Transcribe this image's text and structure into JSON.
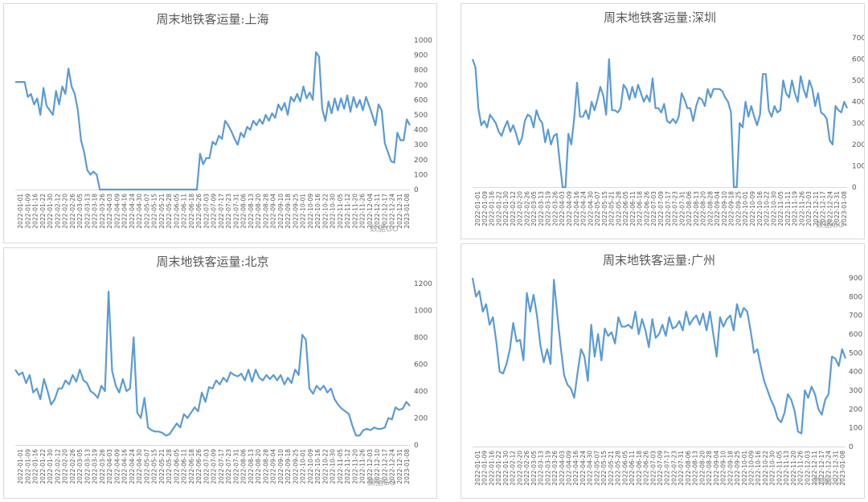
{
  "chart_data": [
    {
      "type": "line",
      "title": "周末地铁客运量:上海",
      "ylim": [
        0,
        1000
      ],
      "yticks": [
        "0",
        "100",
        "200",
        "300",
        "400",
        "500",
        "600",
        "700",
        "800",
        "900",
        "1000"
      ],
      "xtick_labels": [
        "2022-01-01",
        "2022-01-09",
        "2022-01-16",
        "2022-01-22",
        "2022-01-30",
        "2022-02-12",
        "2022-02-20",
        "2022-02-26",
        "2022-03-05",
        "2022-03-13",
        "2022-03-18",
        "2022-03-26",
        "2022-04-03",
        "2022-04-09",
        "2022-04-16",
        "2022-04-24",
        "2022-04-30",
        "2022-05-07",
        "2022-05-15",
        "2022-05-21",
        "2022-05-28",
        "2022-06-05",
        "2022-06-11",
        "2022-06-18",
        "2022-06-26",
        "2022-07-03",
        "2022-07-09",
        "2022-07-17",
        "2022-07-23",
        "2022-07-31",
        "2022-08-06",
        "2022-08-13",
        "2022-08-20",
        "2022-08-28",
        "2022-09-04",
        "2022-09-10",
        "2022-09-18",
        "2022-09-25",
        "2022-10-01",
        "2022-10-09",
        "2022-10-16",
        "2022-10-22",
        "2022-10-30",
        "2022-11-05",
        "2022-11-12",
        "2022-11-20",
        "2022-11-26",
        "2022-12-04",
        "2022-12-11",
        "2022-12-17",
        "2022-12-24",
        "2022-12-31",
        "2023-01-08"
      ],
      "values": [
        720,
        720,
        720,
        720,
        620,
        640,
        570,
        610,
        500,
        680,
        560,
        530,
        500,
        660,
        570,
        690,
        640,
        810,
        690,
        640,
        530,
        330,
        250,
        130,
        100,
        120,
        100,
        0,
        0,
        0,
        0,
        0,
        0,
        0,
        0,
        0,
        0,
        0,
        0,
        0,
        0,
        0,
        0,
        0,
        0,
        0,
        0,
        0,
        0,
        0,
        0,
        0,
        0,
        0,
        0,
        0,
        0,
        0,
        0,
        240,
        170,
        210,
        210,
        320,
        300,
        360,
        340,
        460,
        430,
        390,
        340,
        300,
        380,
        350,
        420,
        400,
        460,
        430,
        470,
        440,
        500,
        460,
        510,
        480,
        570,
        530,
        580,
        500,
        620,
        590,
        640,
        590,
        690,
        610,
        650,
        600,
        920,
        890,
        540,
        460,
        590,
        510,
        610,
        530,
        610,
        540,
        630,
        520,
        620,
        550,
        600,
        530,
        620,
        560,
        500,
        430,
        570,
        530,
        310,
        250,
        190,
        180,
        380,
        330,
        330,
        470,
        430
      ]
    },
    {
      "type": "line",
      "title": "周末地铁客运量:深圳",
      "ylim": [
        0,
        700
      ],
      "yticks": [
        "0",
        "100",
        "200",
        "300",
        "400",
        "500",
        "600",
        "700"
      ],
      "xtick_labels": [
        "2022-01-01",
        "2022-01-09",
        "2022-01-16",
        "2022-01-22",
        "2022-01-30",
        "2022-02-12",
        "2022-02-20",
        "2022-02-26",
        "2022-03-05",
        "2022-03-13",
        "2022-03-19",
        "2022-03-26",
        "2022-04-03",
        "2022-04-09",
        "2022-04-16",
        "2022-04-24",
        "2022-04-30",
        "2022-05-07",
        "2022-05-15",
        "2022-05-21",
        "2022-05-28",
        "2022-06-05",
        "2022-06-11",
        "2022-06-18",
        "2022-06-26",
        "2022-07-03",
        "2022-07-09",
        "2022-07-17",
        "2022-07-23",
        "2022-07-31",
        "2022-08-06",
        "2022-08-13",
        "2022-08-20",
        "2022-08-28",
        "2022-09-04",
        "2022-09-10",
        "2022-09-18",
        "2022-09-25",
        "2022-10-01",
        "2022-10-09",
        "2022-10-16",
        "2022-10-22",
        "2022-10-30",
        "2022-11-05",
        "2022-11-11",
        "2022-11-19",
        "2022-11-26",
        "2022-12-03",
        "2022-12-11",
        "2022-12-17",
        "2022-12-24",
        "2022-12-31",
        "2023-01-08"
      ],
      "values": [
        600,
        560,
        370,
        290,
        310,
        280,
        340,
        320,
        300,
        260,
        240,
        280,
        310,
        260,
        290,
        250,
        200,
        230,
        310,
        340,
        330,
        280,
        360,
        320,
        300,
        210,
        270,
        200,
        240,
        250,
        120,
        0,
        0,
        250,
        200,
        320,
        490,
        330,
        330,
        360,
        320,
        400,
        360,
        410,
        470,
        430,
        340,
        600,
        360,
        360,
        350,
        370,
        480,
        460,
        410,
        470,
        420,
        480,
        440,
        400,
        430,
        400,
        510,
        370,
        370,
        350,
        390,
        310,
        300,
        320,
        300,
        330,
        440,
        410,
        370,
        370,
        310,
        380,
        420,
        410,
        380,
        460,
        420,
        460,
        460,
        460,
        450,
        420,
        400,
        350,
        0,
        0,
        300,
        280,
        400,
        330,
        380,
        330,
        290,
        340,
        530,
        530,
        360,
        330,
        380,
        350,
        360,
        500,
        440,
        420,
        500,
        440,
        400,
        520,
        460,
        420,
        500,
        460,
        380,
        440,
        350,
        340,
        320,
        220,
        200,
        380,
        360,
        350,
        400,
        370
      ]
    },
    {
      "type": "line",
      "title": "周末地铁客运量:北京",
      "ylim": [
        0,
        1200
      ],
      "yticks": [
        "0",
        "200",
        "400",
        "600",
        "800",
        "1000",
        "1200"
      ],
      "xtick_labels": [
        "2022-01-01",
        "2022-01-09",
        "2022-01-16",
        "2022-01-22",
        "2022-01-30",
        "2022-02-12",
        "2022-02-20",
        "2022-02-26",
        "2022-03-05",
        "2022-03-13",
        "2022-03-19",
        "2022-03-26",
        "2022-04-03",
        "2022-04-09",
        "2022-04-16",
        "2022-04-24",
        "2022-04-30",
        "2022-05-07",
        "2022-05-15",
        "2022-05-21",
        "2022-05-28",
        "2022-06-05",
        "2022-06-11",
        "2022-06-18",
        "2022-06-26",
        "2022-07-03",
        "2022-07-09",
        "2022-07-17",
        "2022-07-23",
        "2022-07-31",
        "2022-08-06",
        "2022-08-13",
        "2022-08-20",
        "2022-08-28",
        "2022-09-04",
        "2022-09-10",
        "2022-09-18",
        "2022-09-25",
        "2022-10-01",
        "2022-10-09",
        "2022-10-16",
        "2022-10-22",
        "2022-10-30",
        "2022-11-05",
        "2022-11-12",
        "2022-11-20",
        "2022-11-26",
        "2022-12-03",
        "2022-12-10",
        "2022-12-17",
        "2022-12-24",
        "2022-12-31",
        "2023-01-08"
      ],
      "values": [
        560,
        520,
        540,
        460,
        520,
        390,
        420,
        340,
        490,
        400,
        300,
        340,
        420,
        420,
        480,
        450,
        520,
        470,
        560,
        480,
        460,
        400,
        380,
        350,
        440,
        400,
        1140,
        550,
        440,
        390,
        490,
        400,
        420,
        800,
        240,
        200,
        350,
        130,
        110,
        100,
        100,
        90,
        70,
        80,
        120,
        160,
        130,
        230,
        200,
        240,
        280,
        250,
        390,
        320,
        430,
        420,
        480,
        450,
        500,
        470,
        540,
        520,
        510,
        530,
        480,
        560,
        470,
        560,
        500,
        480,
        520,
        490,
        520,
        480,
        520,
        450,
        500,
        460,
        560,
        520,
        820,
        780,
        420,
        380,
        440,
        410,
        440,
        390,
        420,
        340,
        300,
        270,
        250,
        230,
        140,
        70,
        70,
        110,
        120,
        110,
        130,
        120,
        120,
        130,
        200,
        190,
        280,
        260,
        270,
        320,
        290
      ]
    },
    {
      "type": "line",
      "title": "周末地铁客运量:广州",
      "ylim": [
        0,
        900
      ],
      "yticks": [
        "0",
        "100",
        "200",
        "300",
        "400",
        "500",
        "600",
        "700",
        "800",
        "900"
      ],
      "xtick_labels": [
        "2022-01-01",
        "2022-01-09",
        "2022-01-16",
        "2022-01-22",
        "2022-01-30",
        "2022-02-12",
        "2022-02-20",
        "2022-02-26",
        "2022-03-05",
        "2022-03-13",
        "2022-03-19",
        "2022-03-26",
        "2022-04-03",
        "2022-04-09",
        "2022-04-16",
        "2022-04-24",
        "2022-04-30",
        "2022-05-07",
        "2022-05-15",
        "2022-05-21",
        "2022-05-28",
        "2022-06-05",
        "2022-06-11",
        "2022-06-18",
        "2022-06-26",
        "2022-07-03",
        "2022-07-09",
        "2022-07-17",
        "2022-07-23",
        "2022-07-31",
        "2022-08-06",
        "2022-08-13",
        "2022-08-20",
        "2022-08-28",
        "2022-09-04",
        "2022-09-10",
        "2022-09-18",
        "2022-09-25",
        "2022-10-01",
        "2022-10-09",
        "2022-10-16",
        "2022-10-22",
        "2022-10-30",
        "2022-11-05",
        "2022-11-13",
        "2022-11-20",
        "2022-11-26",
        "2022-12-03",
        "2022-12-11",
        "2022-12-17",
        "2022-12-24",
        "2022-12-31",
        "2023-01-08"
      ],
      "values": [
        900,
        800,
        830,
        720,
        760,
        650,
        690,
        560,
        400,
        390,
        440,
        520,
        660,
        560,
        570,
        460,
        820,
        720,
        810,
        700,
        540,
        450,
        520,
        440,
        890,
        700,
        530,
        380,
        330,
        310,
        260,
        400,
        520,
        480,
        350,
        650,
        480,
        600,
        460,
        630,
        590,
        610,
        550,
        690,
        640,
        640,
        650,
        630,
        720,
        600,
        680,
        620,
        530,
        680,
        580,
        600,
        650,
        590,
        690,
        630,
        640,
        670,
        620,
        720,
        650,
        680,
        700,
        650,
        710,
        620,
        720,
        600,
        480,
        690,
        640,
        680,
        700,
        620,
        760,
        690,
        740,
        720,
        620,
        500,
        520,
        430,
        350,
        300,
        250,
        210,
        150,
        130,
        180,
        280,
        250,
        190,
        80,
        70,
        300,
        260,
        320,
        280,
        200,
        170,
        250,
        280,
        480,
        470,
        430,
        520,
        470
      ]
    }
  ],
  "watermark": "数据GO"
}
